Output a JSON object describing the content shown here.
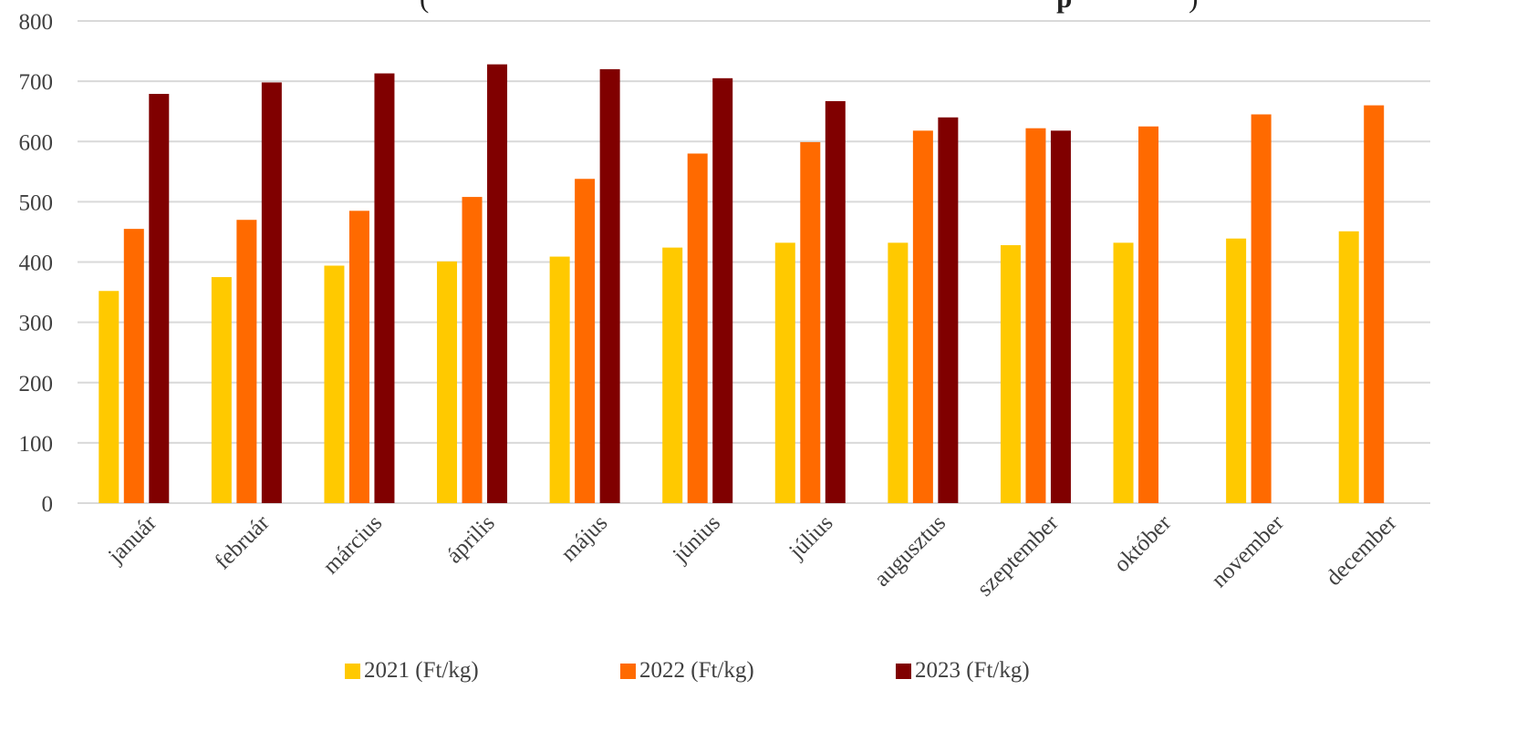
{
  "title": {
    "prefix": "(",
    "bold": "p",
    "suffix": ")"
  },
  "colors": {
    "series_2021": "#FFC900",
    "series_2022": "#FF6A00",
    "series_2023": "#800000",
    "grid": "#d9d9d9",
    "axis_text": "#404040"
  },
  "chart_data": {
    "type": "bar",
    "ylim": [
      0,
      800
    ],
    "yticks": [
      0,
      100,
      200,
      300,
      400,
      500,
      600,
      700,
      800
    ],
    "grid": true,
    "legend_position": "bottom",
    "categories": [
      "január",
      "február",
      "március",
      "április",
      "május",
      "június",
      "július",
      "augusztus",
      "szeptember",
      "október",
      "november",
      "december"
    ],
    "series": [
      {
        "name": "2021 (Ft/kg)",
        "values": [
          352,
          375,
          394,
          401,
          409,
          424,
          432,
          432,
          428,
          432,
          439,
          451
        ]
      },
      {
        "name": "2022 (Ft/kg)",
        "values": [
          455,
          470,
          485,
          508,
          538,
          580,
          599,
          618,
          622,
          625,
          645,
          660
        ]
      },
      {
        "name": "2023 (Ft/kg)",
        "values": [
          679,
          698,
          713,
          728,
          720,
          705,
          667,
          640,
          618,
          null,
          null,
          null
        ]
      }
    ]
  }
}
